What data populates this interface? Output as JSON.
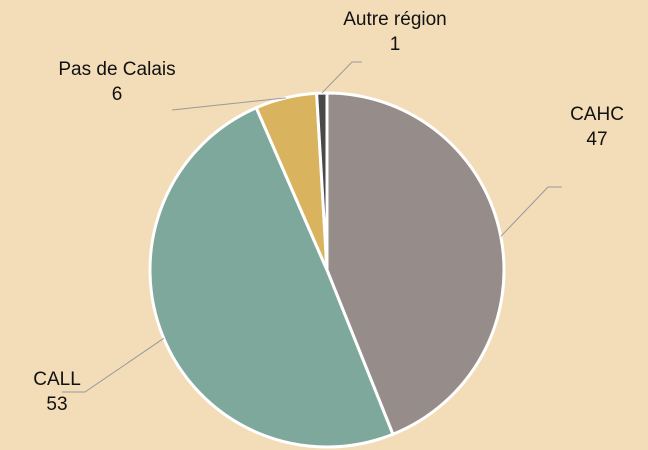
{
  "chart_data": {
    "type": "pie",
    "categories": [
      "CAHC",
      "CALL",
      "Pas de Calais",
      "Autre région"
    ],
    "values": [
      47,
      53,
      6,
      1
    ],
    "colors": [
      "#968c8a",
      "#7fa89d",
      "#d9b35e",
      "#4a4848"
    ]
  }
}
